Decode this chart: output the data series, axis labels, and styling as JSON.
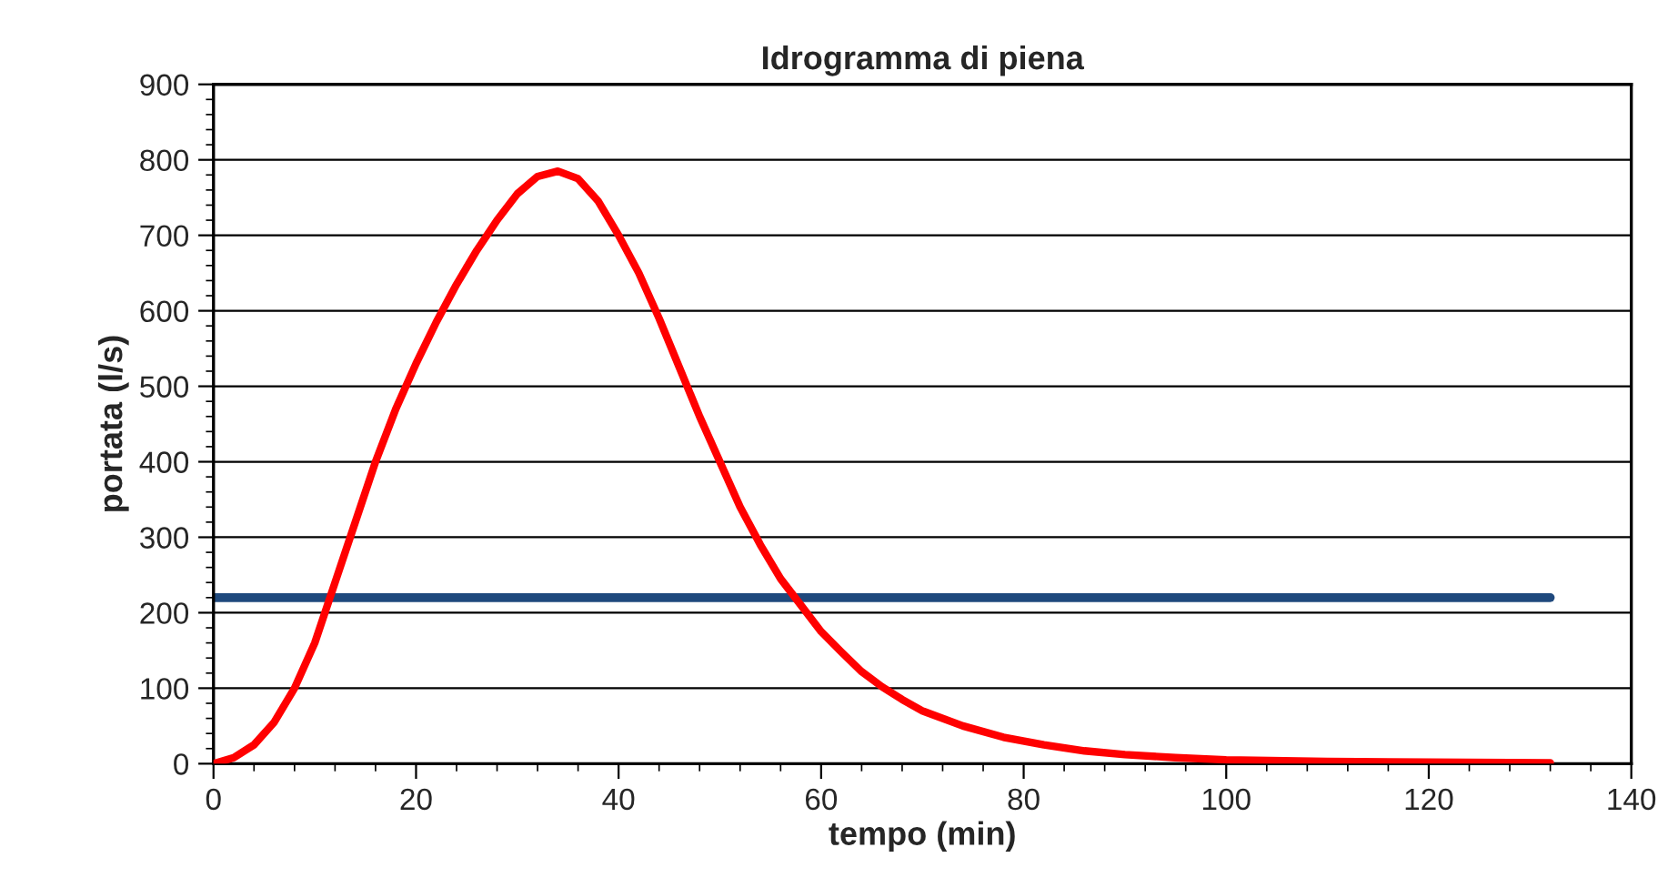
{
  "chart_data": {
    "type": "line",
    "title": "Idrogramma di piena",
    "xlabel": "tempo (min)",
    "ylabel": "portata (l/s)",
    "xlim": [
      0,
      140
    ],
    "xticks": [
      0,
      20,
      40,
      60,
      80,
      100,
      120,
      140
    ],
    "ylim": [
      0,
      900
    ],
    "yticks": [
      0,
      100,
      200,
      300,
      400,
      500,
      600,
      700,
      800,
      900
    ],
    "grid": "y",
    "marker": "none",
    "line_style": "solid",
    "series": [
      {
        "color": "#ff0000",
        "x": [
          0,
          2,
          4,
          6,
          8,
          10,
          12,
          14,
          16,
          18,
          20,
          22,
          24,
          26,
          28,
          30,
          32,
          34,
          36,
          38,
          40,
          42,
          44,
          46,
          48,
          50,
          52,
          54,
          56,
          58,
          60,
          62,
          64,
          66,
          68,
          70,
          74,
          78,
          82,
          86,
          90,
          95,
          100,
          110,
          120,
          132
        ],
        "values": [
          0,
          8,
          25,
          55,
          100,
          160,
          240,
          320,
          400,
          470,
          530,
          585,
          635,
          680,
          720,
          755,
          778,
          785,
          775,
          745,
          700,
          650,
          590,
          525,
          460,
          400,
          340,
          290,
          245,
          210,
          175,
          148,
          122,
          102,
          85,
          70,
          50,
          35,
          25,
          17,
          12,
          8,
          5,
          3,
          2,
          1
        ]
      },
      {
        "color": "#1f497d",
        "x": [
          0,
          132
        ],
        "values": [
          220,
          220
        ]
      }
    ]
  }
}
